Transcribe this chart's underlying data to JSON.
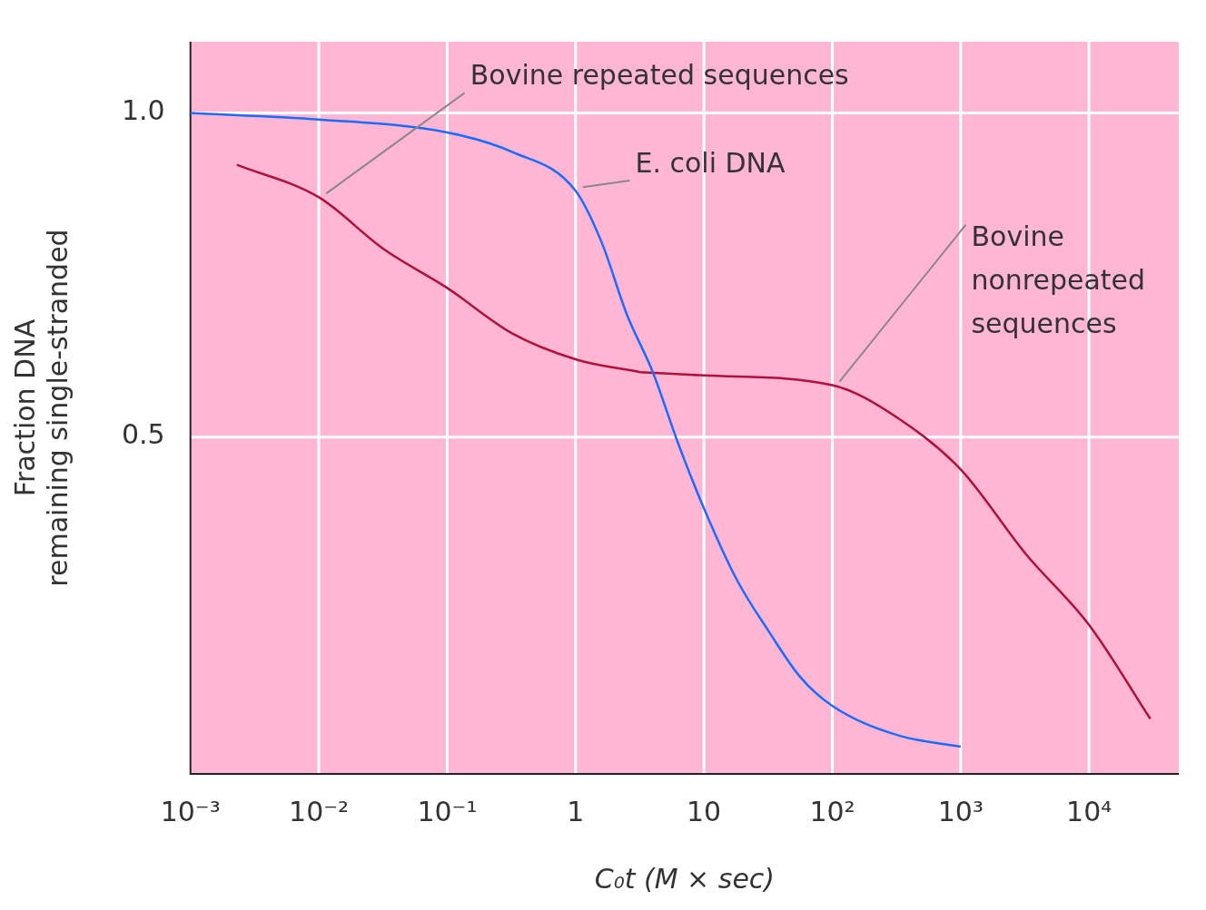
{
  "chart_data": {
    "type": "line",
    "xlabel": "C₀t (M × sec)",
    "ylabel": "Fraction DNA\nremaining single-stranded",
    "log": "x",
    "grid": true,
    "legend": false,
    "marker": "none",
    "line_style": "solid",
    "xlim": [
      0.001,
      50000
    ],
    "xticks": [
      {
        "value": 0.001,
        "label": "10⁻³"
      },
      {
        "value": 0.01,
        "label": "10⁻²"
      },
      {
        "value": 0.1,
        "label": "10⁻¹"
      },
      1,
      10,
      {
        "value": 100,
        "label": "10²"
      },
      {
        "value": 1000,
        "label": "10³"
      },
      {
        "value": 10000,
        "label": "10⁴"
      }
    ],
    "ylim": [
      -0.02,
      1.11
    ],
    "yticks": [
      {
        "value": 0.5,
        "label": "0.5"
      },
      {
        "value": 1,
        "label": "1.0"
      }
    ],
    "series": [
      {
        "name": "E. coli DNA",
        "color": "#1a6cff",
        "x": [
          0.001,
          0.01,
          0.1,
          0.32,
          1,
          1.6,
          2.5,
          4,
          6.3,
          10,
          18,
          32,
          56,
          100,
          320,
          1000
        ],
        "values": [
          1.0,
          0.99,
          0.97,
          0.94,
          0.88,
          0.8,
          0.69,
          0.6,
          0.49,
          0.39,
          0.28,
          0.2,
          0.13,
          0.085,
          0.04,
          0.022
        ]
      },
      {
        "name": "Bovine repeated sequences",
        "color": "#b0103c",
        "x": [
          0.0023,
          0.01,
          0.032,
          0.1,
          0.32,
          1,
          3.2
        ],
        "values": [
          0.92,
          0.87,
          0.79,
          0.73,
          0.66,
          0.62,
          0.6
        ]
      },
      {
        "name": "Bovine nonrepeated sequences",
        "color": "#b0103c",
        "x": [
          3.2,
          10,
          100,
          320,
          1000,
          3200,
          10000,
          30000
        ],
        "values": [
          0.6,
          0.595,
          0.58,
          0.53,
          0.45,
          0.32,
          0.21,
          0.065
        ]
      }
    ]
  }
}
